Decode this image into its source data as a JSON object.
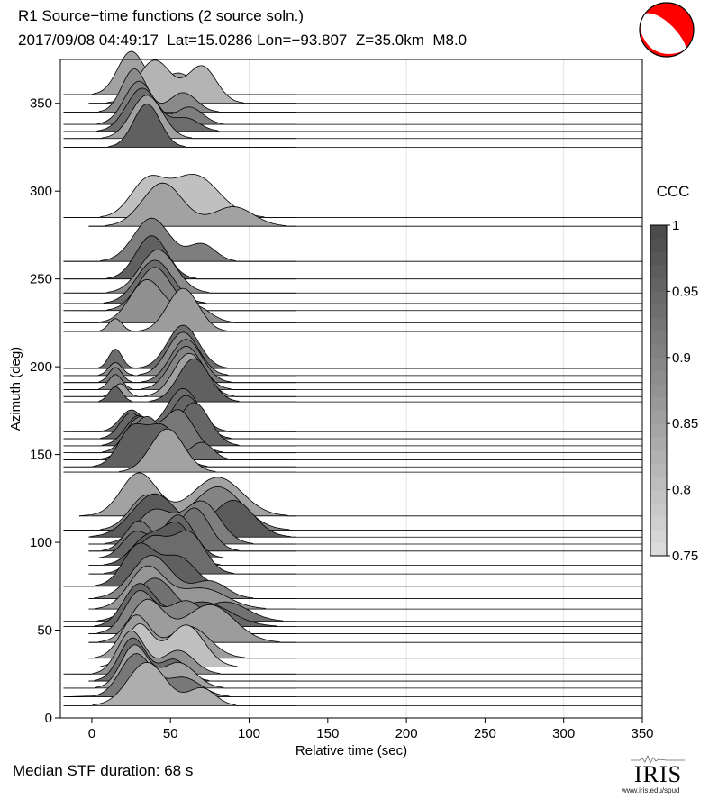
{
  "header": {
    "line1": "R1 Source−time functions (2 source soln.)",
    "line2": "2017/09/08 04:49:17  Lat=15.0286 Lon=−93.807  Z=35.0km  M8.0"
  },
  "footer": {
    "median": "Median STF duration: 68 s",
    "logo_text": "IRIS",
    "logo_url": "www.iris.edu/spud"
  },
  "colorbar": {
    "title": "CCC",
    "range": [
      0.75,
      1
    ],
    "tick_values": [
      1,
      0.95,
      0.9,
      0.85,
      0.8,
      0.75
    ],
    "tick_labels": [
      "1",
      "0.95",
      "0.9",
      "0.85",
      "0.8",
      "0.75"
    ]
  },
  "chart_data": {
    "type": "area",
    "subtype": "record-section",
    "xlabel": "Relative time (sec)",
    "ylabel": "Azimuth (deg)",
    "xlim": [
      -20,
      350
    ],
    "ylim": [
      0,
      375
    ],
    "xticks": [
      0,
      50,
      100,
      150,
      200,
      250,
      300,
      350
    ],
    "yticks": [
      0,
      50,
      100,
      150,
      200,
      250,
      300,
      350
    ],
    "vertical_gridlines_at": [
      100,
      200,
      300
    ],
    "traces": [
      {
        "az": 7,
        "ccc": 0.83,
        "bumps": [
          [
            35,
            17,
            1.0
          ],
          [
            70,
            12,
            0.4
          ]
        ],
        "start": -18,
        "end": 96
      },
      {
        "az": 12,
        "ccc": 0.92,
        "bumps": [
          [
            28,
            14,
            1.0
          ],
          [
            58,
            16,
            0.45
          ]
        ],
        "start": -18,
        "end": 102
      },
      {
        "az": 17,
        "ccc": 0.85,
        "bumps": [
          [
            27,
            12,
            1.0
          ],
          [
            55,
            15,
            0.6
          ]
        ],
        "start": -18,
        "end": 98
      },
      {
        "az": 21,
        "ccc": 0.94,
        "bumps": [
          [
            26,
            12,
            1.0
          ],
          [
            52,
            12,
            0.5
          ]
        ],
        "start": -2,
        "end": 92
      },
      {
        "az": 25,
        "ccc": 0.88,
        "bumps": [
          [
            25,
            12,
            1.0
          ],
          [
            55,
            14,
            0.55
          ]
        ],
        "start": -18,
        "end": 100
      },
      {
        "az": 29,
        "ccc": 0.8,
        "bumps": [
          [
            30,
            12,
            0.9
          ],
          [
            60,
            16,
            0.9
          ]
        ],
        "start": -2,
        "end": 112
      },
      {
        "az": 34,
        "ccc": 0.86,
        "bumps": [
          [
            28,
            13,
            1.0
          ],
          [
            62,
            18,
            0.75
          ]
        ],
        "start": -2,
        "end": 120
      },
      {
        "az": 43,
        "ccc": 0.86,
        "bumps": [
          [
            35,
            15,
            1.0
          ],
          [
            75,
            22,
            0.9
          ]
        ],
        "start": -2,
        "end": 125
      },
      {
        "az": 48,
        "ccc": 0.9,
        "bumps": [
          [
            30,
            13,
            1.0
          ],
          [
            60,
            18,
            0.8
          ]
        ],
        "start": -2,
        "end": 110
      },
      {
        "az": 52,
        "ccc": 0.95,
        "bumps": [
          [
            30,
            14,
            1.0
          ],
          [
            70,
            25,
            0.6
          ]
        ],
        "start": -18,
        "end": 118
      },
      {
        "az": 55,
        "ccc": 0.93,
        "bumps": [
          [
            40,
            18,
            1.0
          ],
          [
            85,
            20,
            0.45
          ]
        ],
        "start": -18,
        "end": 120
      },
      {
        "az": 62,
        "ccc": 0.87,
        "bumps": [
          [
            35,
            16,
            1.0
          ],
          [
            70,
            22,
            0.5
          ]
        ],
        "start": -2,
        "end": 115
      },
      {
        "az": 68,
        "ccc": 0.9,
        "bumps": [
          [
            38,
            18,
            1.0
          ],
          [
            75,
            15,
            0.4
          ]
        ],
        "start": -2,
        "end": 105
      },
      {
        "az": 75,
        "ccc": 0.96,
        "bumps": [
          [
            30,
            14,
            1.0
          ],
          [
            55,
            15,
            0.7
          ]
        ],
        "start": -18,
        "end": 96
      },
      {
        "az": 82,
        "ccc": 0.94,
        "bumps": [
          [
            38,
            15,
            0.9
          ],
          [
            62,
            14,
            1.0
          ]
        ],
        "start": -2,
        "end": 102
      },
      {
        "az": 87,
        "ccc": 0.97,
        "bumps": [
          [
            35,
            14,
            0.7
          ],
          [
            55,
            13,
            1.0
          ]
        ],
        "start": -2,
        "end": 98
      },
      {
        "az": 91,
        "ccc": 0.95,
        "bumps": [
          [
            28,
            12,
            0.6
          ],
          [
            55,
            14,
            1.0
          ]
        ],
        "start": -2,
        "end": 96
      },
      {
        "az": 95,
        "ccc": 0.93,
        "bumps": [
          [
            30,
            12,
            0.7
          ],
          [
            65,
            14,
            1.0
          ]
        ],
        "start": -2,
        "end": 100
      },
      {
        "az": 99,
        "ccc": 0.91,
        "bumps": [
          [
            40,
            16,
            0.8
          ],
          [
            70,
            16,
            1.0
          ]
        ],
        "start": -2,
        "end": 105
      },
      {
        "az": 103,
        "ccc": 0.97,
        "bumps": [
          [
            40,
            20,
            1.0
          ],
          [
            90,
            18,
            0.85
          ]
        ],
        "start": -2,
        "end": 128
      },
      {
        "az": 107,
        "ccc": 0.9,
        "bumps": [
          [
            35,
            15,
            0.8
          ],
          [
            80,
            22,
            1.0
          ]
        ],
        "start": -18,
        "end": 128
      },
      {
        "az": 115,
        "ccc": 0.85,
        "bumps": [
          [
            30,
            16,
            1.0
          ],
          [
            80,
            22,
            0.9
          ]
        ],
        "start": -8,
        "end": 128
      },
      {
        "az": 140,
        "ccc": 0.85,
        "bumps": [
          [
            48,
            15,
            1.0
          ]
        ],
        "start": -18,
        "end": 90
      },
      {
        "az": 143,
        "ccc": 0.96,
        "bumps": [
          [
            25,
            12,
            0.9
          ],
          [
            45,
            14,
            1.0
          ]
        ],
        "start": -18,
        "end": 88
      },
      {
        "az": 147,
        "ccc": 0.93,
        "bumps": [
          [
            35,
            15,
            1.0
          ],
          [
            70,
            10,
            0.4
          ]
        ],
        "start": -18,
        "end": 92
      },
      {
        "az": 151,
        "ccc": 0.92,
        "bumps": [
          [
            30,
            12,
            0.8
          ],
          [
            55,
            14,
            1.0
          ]
        ],
        "start": -18,
        "end": 96
      },
      {
        "az": 155,
        "ccc": 0.95,
        "bumps": [
          [
            30,
            12,
            0.7
          ],
          [
            65,
            14,
            1.0
          ]
        ],
        "start": -18,
        "end": 98
      },
      {
        "az": 159,
        "ccc": 0.95,
        "bumps": [
          [
            25,
            10,
            0.6
          ],
          [
            60,
            14,
            1.0
          ]
        ],
        "start": -18,
        "end": 96
      },
      {
        "az": 163,
        "ccc": 0.94,
        "bumps": [
          [
            25,
            10,
            0.5
          ],
          [
            58,
            14,
            1.0
          ]
        ],
        "start": -18,
        "end": 96
      },
      {
        "az": 180,
        "ccc": 0.96,
        "bumps": [
          [
            15,
            6,
            0.35
          ],
          [
            65,
            14,
            1.0
          ]
        ],
        "start": -18,
        "end": 105
      },
      {
        "az": 183,
        "ccc": 0.85,
        "bumps": [
          [
            18,
            6,
            0.3
          ],
          [
            62,
            14,
            1.0
          ]
        ],
        "start": -18,
        "end": 100
      },
      {
        "az": 187,
        "ccc": 0.9,
        "bumps": [
          [
            15,
            6,
            0.35
          ],
          [
            60,
            14,
            1.0
          ]
        ],
        "start": -18,
        "end": 100
      },
      {
        "az": 191,
        "ccc": 0.92,
        "bumps": [
          [
            15,
            6,
            0.35
          ],
          [
            60,
            14,
            1.0
          ]
        ],
        "start": -18,
        "end": 102
      },
      {
        "az": 195,
        "ccc": 0.89,
        "bumps": [
          [
            15,
            6,
            0.3
          ],
          [
            58,
            14,
            1.0
          ]
        ],
        "start": -18,
        "end": 98
      },
      {
        "az": 199,
        "ccc": 0.94,
        "bumps": [
          [
            15,
            6,
            0.45
          ],
          [
            58,
            14,
            1.0
          ]
        ],
        "start": -18,
        "end": 100
      },
      {
        "az": 220,
        "ccc": 0.86,
        "bumps": [
          [
            15,
            6,
            0.3
          ],
          [
            58,
            14,
            1.0
          ]
        ],
        "start": -18,
        "end": 95
      },
      {
        "az": 225,
        "ccc": 0.88,
        "bumps": [
          [
            35,
            15,
            1.0
          ],
          [
            65,
            14,
            0.4
          ]
        ],
        "start": -18,
        "end": 95
      },
      {
        "az": 232,
        "ccc": 0.9,
        "bumps": [
          [
            40,
            15,
            1.0
          ]
        ],
        "start": -18,
        "end": 92
      },
      {
        "az": 236,
        "ccc": 0.94,
        "bumps": [
          [
            40,
            16,
            1.0
          ]
        ],
        "start": -18,
        "end": 92
      },
      {
        "az": 242,
        "ccc": 0.89,
        "bumps": [
          [
            42,
            16,
            1.0
          ]
        ],
        "start": -18,
        "end": 95
      },
      {
        "az": 250,
        "ccc": 0.96,
        "bumps": [
          [
            38,
            14,
            1.0
          ]
        ],
        "start": -18,
        "end": 88
      },
      {
        "az": 260,
        "ccc": 0.91,
        "bumps": [
          [
            38,
            16,
            1.0
          ],
          [
            70,
            12,
            0.4
          ]
        ],
        "start": -18,
        "end": 100
      },
      {
        "az": 280,
        "ccc": 0.85,
        "bumps": [
          [
            45,
            18,
            1.0
          ],
          [
            90,
            18,
            0.45
          ]
        ],
        "start": -2,
        "end": 128
      },
      {
        "az": 285,
        "ccc": 0.8,
        "bumps": [
          [
            35,
            15,
            0.8
          ],
          [
            65,
            22,
            1.0
          ]
        ],
        "start": -18,
        "end": 125
      },
      {
        "az": 325,
        "ccc": 0.96,
        "bumps": [
          [
            35,
            12,
            1.0
          ]
        ],
        "start": -18,
        "end": 82
      },
      {
        "az": 330,
        "ccc": 0.85,
        "bumps": [
          [
            35,
            14,
            1.0
          ]
        ],
        "start": -18,
        "end": 92
      },
      {
        "az": 334,
        "ccc": 0.94,
        "bumps": [
          [
            32,
            14,
            1.0
          ],
          [
            60,
            12,
            0.3
          ]
        ],
        "start": -18,
        "end": 98
      },
      {
        "az": 338,
        "ccc": 0.91,
        "bumps": [
          [
            30,
            13,
            1.0
          ],
          [
            62,
            12,
            0.4
          ]
        ],
        "start": -18,
        "end": 102
      },
      {
        "az": 345,
        "ccc": 0.89,
        "bumps": [
          [
            27,
            11,
            1.0
          ],
          [
            58,
            12,
            0.45
          ]
        ],
        "start": -18,
        "end": 98
      },
      {
        "az": 350,
        "ccc": 0.82,
        "bumps": [
          [
            40,
            15,
            0.7
          ],
          [
            70,
            13,
            0.6
          ]
        ],
        "start": -2,
        "end": 104
      },
      {
        "az": 355,
        "ccc": 0.85,
        "bumps": [
          [
            25,
            12,
            1.0
          ],
          [
            55,
            14,
            0.5
          ]
        ],
        "start": -18,
        "end": 100
      }
    ]
  }
}
